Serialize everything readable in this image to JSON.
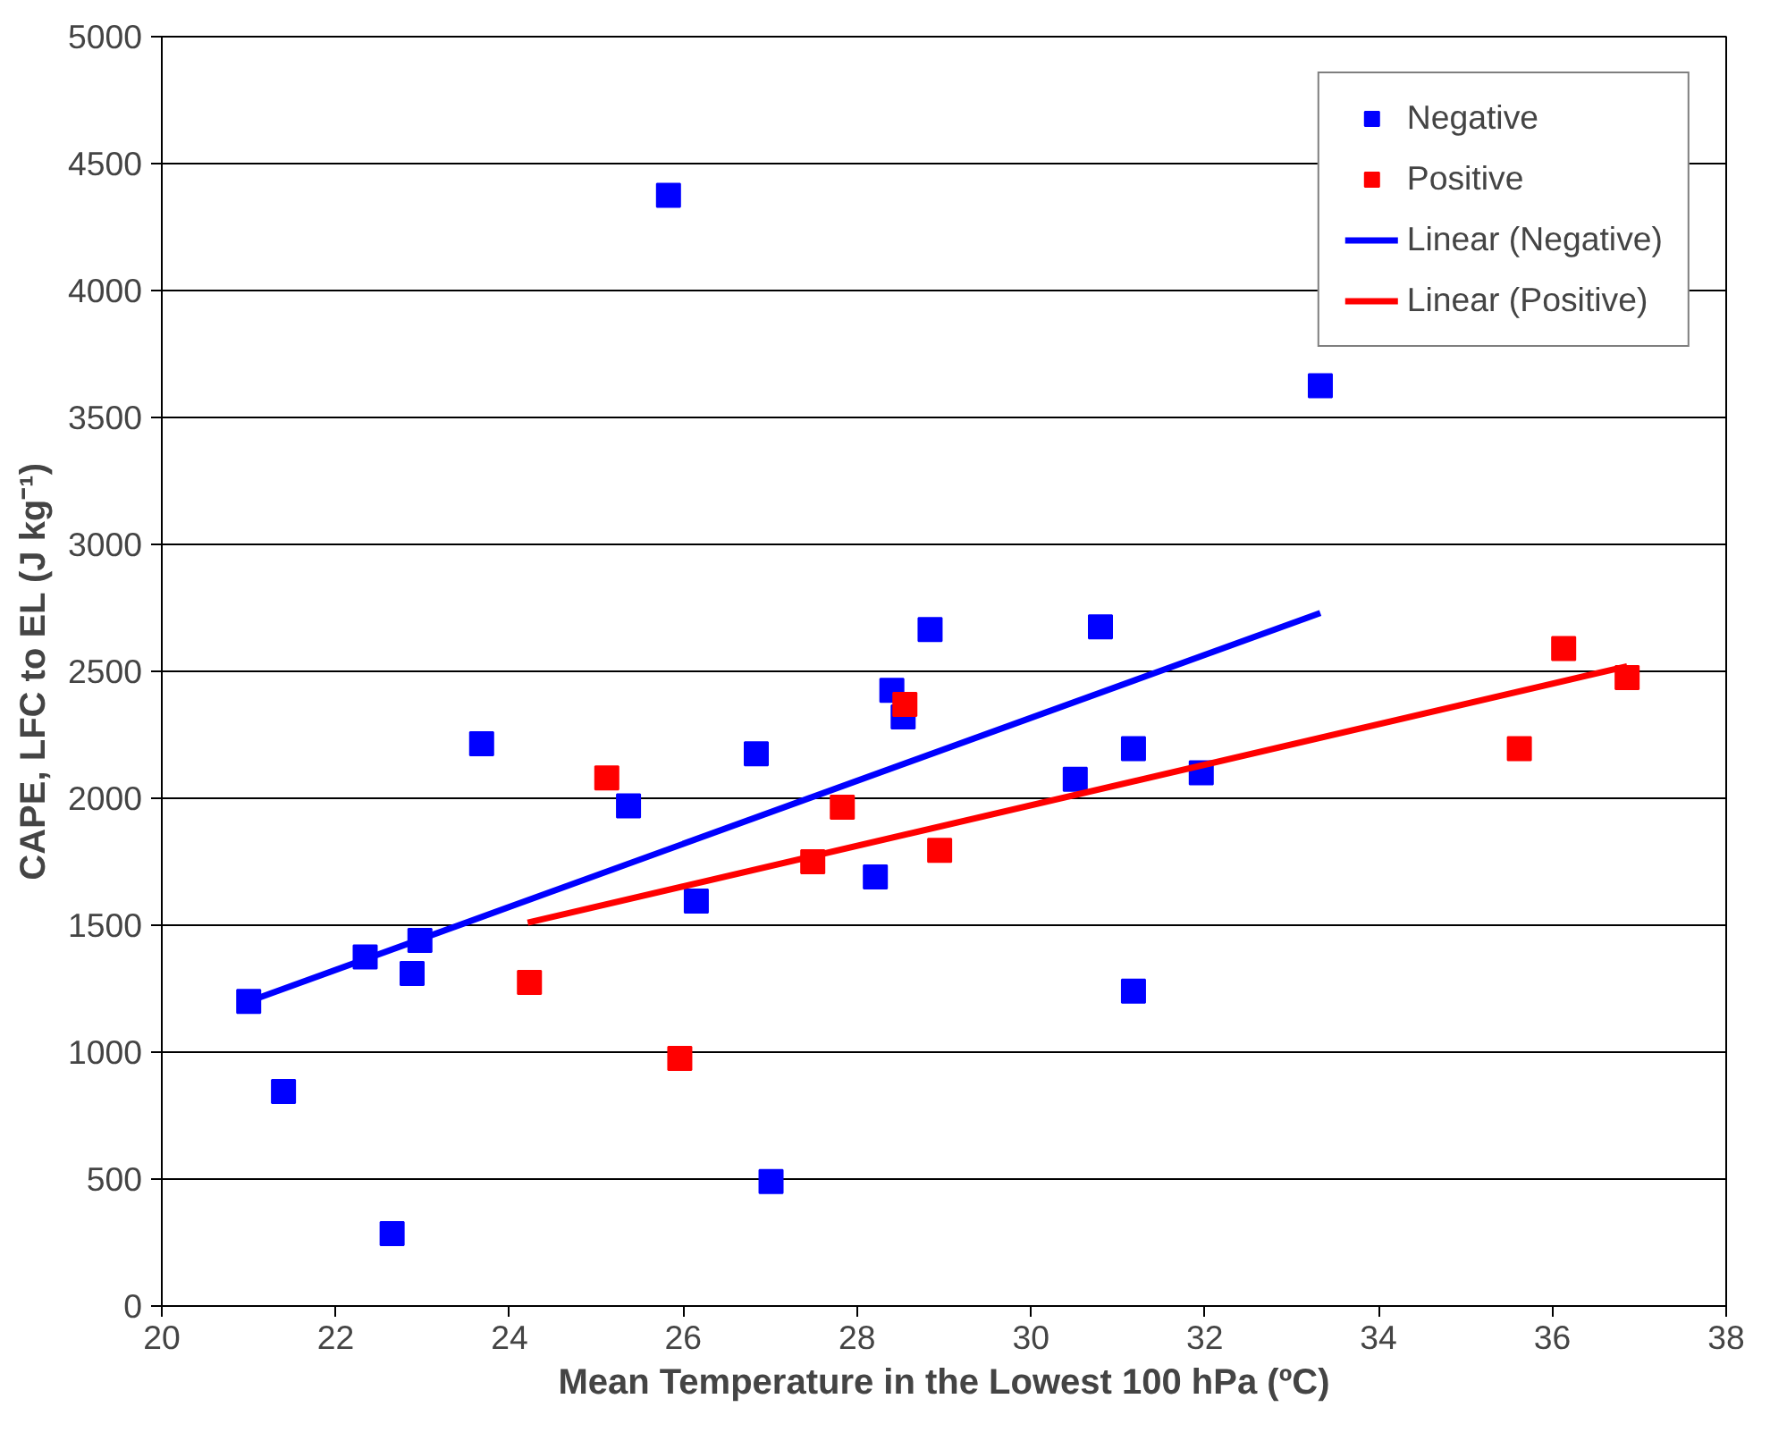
{
  "chart_data": {
    "type": "scatter",
    "xlabel": "Mean Temperature in the Lowest 100 hPa (ºC)",
    "ylabel": "CAPE, LFC to EL (J kg⁻¹)",
    "xlim": [
      20,
      38
    ],
    "xticks": [
      20,
      22,
      24,
      26,
      28,
      30,
      32,
      34,
      36,
      38
    ],
    "ylim": [
      0,
      5000
    ],
    "yticks": [
      0,
      500,
      1000,
      1500,
      2000,
      2500,
      3000,
      3500,
      4000,
      4500,
      5000
    ],
    "grid": "y",
    "legend": "top right",
    "marker": "square",
    "series": [
      {
        "name": "Negative",
        "color": "#0000ff",
        "x": [
          21.0,
          21.4,
          22.65,
          22.34,
          22.88,
          22.97,
          23.68,
          25.37,
          25.83,
          26.15,
          26.84,
          27.01,
          28.21,
          28.4,
          28.53,
          28.84,
          30.51,
          30.8,
          31.18,
          31.18,
          31.96,
          33.33
        ],
        "values": [
          1200,
          845,
          285,
          1375,
          1310,
          1440,
          2215,
          1970,
          4375,
          1595,
          2175,
          490,
          1690,
          2425,
          2320,
          2665,
          2075,
          2675,
          2195,
          1240,
          2100,
          3625
        ]
      },
      {
        "name": "Positive",
        "color": "#ff0000",
        "x": [
          24.23,
          25.12,
          25.96,
          27.49,
          27.83,
          28.55,
          28.95,
          35.62,
          36.13,
          36.86
        ],
        "values": [
          1275,
          2080,
          975,
          1750,
          1965,
          2370,
          1795,
          2195,
          2590,
          2475
        ]
      },
      {
        "name": "Linear (Negative)",
        "type": "line",
        "marker": "none",
        "color": "#0000ff",
        "x": [
          21.0,
          33.33
        ],
        "values": [
          1200,
          2730
        ]
      },
      {
        "name": "Linear (Positive)",
        "type": "line",
        "marker": "none",
        "color": "#ff0000",
        "x": [
          24.21,
          36.86
        ],
        "values": [
          1510,
          2520
        ]
      }
    ]
  }
}
